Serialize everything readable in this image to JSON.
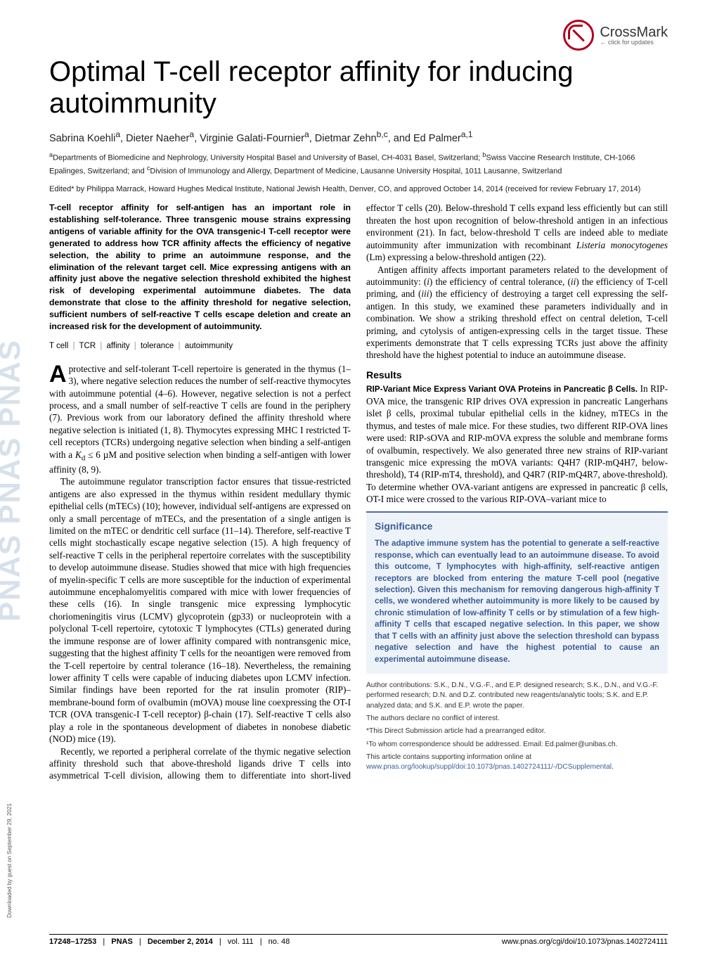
{
  "journal_logo_watermark": "PNAS   PNAS   PNAS",
  "crossmark": {
    "label": "CrossMark",
    "sub": "click for updates"
  },
  "title": "Optimal T-cell receptor affinity for inducing autoimmunity",
  "authors_html": "Sabrina Koehli<sup>a</sup>, Dieter Naeher<sup>a</sup>, Virginie Galati-Fournier<sup>a</sup>, Dietmar Zehn<sup>b,c</sup>, and Ed Palmer<sup>a,1</sup>",
  "affiliations_html": "<sup>a</sup>Departments of Biomedicine and Nephrology, University Hospital Basel and University of Basel, CH-4031 Basel, Switzerland; <sup>b</sup>Swiss Vaccine Research Institute, CH-1066 Epalinges, Switzerland; and <sup>c</sup>Division of Immunology and Allergy, Department of Medicine, Lausanne University Hospital, 1011 Lausanne, Switzerland",
  "edited_by": "Edited* by Philippa Marrack, Howard Hughes Medical Institute, National Jewish Health, Denver, CO, and approved October 14, 2014 (received for review February 17, 2014)",
  "abstract": "T-cell receptor affinity for self-antigen has an important role in establishing self-tolerance. Three transgenic mouse strains expressing antigens of variable affinity for the OVA transgenic-I T-cell receptor were generated to address how TCR affinity affects the efficiency of negative selection, the ability to prime an autoimmune response, and the elimination of the relevant target cell. Mice expressing antigens with an affinity just above the negative selection threshold exhibited the highest risk of developing experimental autoimmune diabetes. The data demonstrate that close to the affinity threshold for negative selection, sufficient numbers of self-reactive T cells escape deletion and create an increased risk for the development of autoimmunity.",
  "keywords": [
    "T cell",
    "TCR",
    "affinity",
    "tolerance",
    "autoimmunity"
  ],
  "body": {
    "p1_first_letter": "A",
    "p1_rest": " protective and self-tolerant T-cell repertoire is generated in the thymus (1–3), where negative selection reduces the number of self-reactive thymocytes with autoimmune potential (4–6). However, negative selection is not a perfect process, and a small number of self-reactive T cells are found in the periphery (7). Previous work from our laboratory defined the affinity threshold where negative selection is initiated (1, 8). Thymocytes expressing MHC I restricted T-cell receptors (TCRs) undergoing negative selection when binding a self-antigen with a <span class=\"ital\">K</span><sub>d</sub> ≤ 6 µM and positive selection when binding a self-antigen with lower affinity (8, 9).",
    "p2": "The autoimmune regulator transcription factor ensures that tissue-restricted antigens are also expressed in the thymus within resident medullary thymic epithelial cells (mTECs) (10); however, individual self-antigens are expressed on only a small percentage of mTECs, and the presentation of a single antigen is limited on the mTEC or dendritic cell surface (11–14). Therefore, self-reactive T cells might stochastically escape negative selection (15). A high frequency of self-reactive T cells in the peripheral repertoire correlates with the susceptibility to develop autoimmune disease. Studies showed that mice with high frequencies of myelin-specific T cells are more susceptible for the induction of experimental autoimmune encephalomyelitis compared with mice with lower frequencies of these cells (16). In single transgenic mice expressing lymphocytic choriomeningitis virus (LCMV) glycoprotein (gp33) or nucleoprotein with a polyclonal T-cell repertoire, cytotoxic T lymphocytes (CTLs) generated during the immune response are of lower affinity compared with nontransgenic mice, suggesting that the highest affinity T cells for the neoantigen were removed from the T-cell repertoire by central tolerance (16–18). Nevertheless, the remaining lower affinity T cells were capable of inducing diabetes upon LCMV infection. Similar findings have been reported for the rat insulin promoter (RIP)–membrane-bound form of ovalbumin (mOVA) mouse line coexpressing the OT-I TCR (OVA transgenic-I T-cell receptor) β-chain (17). Self-reactive T cells also play a role in the spontaneous development of diabetes in nonobese diabetic (NOD) mice (19).",
    "p3": "Recently, we reported a peripheral correlate of the thymic negative selection affinity threshold such that above-threshold ligands drive T cells into asymmetrical T-cell division, allowing them to differentiate into short-lived effector T cells (20). Below-threshold T cells expand less efficiently but can still threaten the host upon recognition of below-threshold antigen in an infectious environment (21). In fact, below-threshold T cells are indeed able to mediate autoimmunity after immunization with recombinant <span class=\"ital\">Listeria monocytogenes</span> (Lm) expressing a below-threshold antigen (22).",
    "p4": "Antigen affinity affects important parameters related to the development of autoimmunity: (<span class=\"ital\">i</span>) the efficiency of central tolerance, (<span class=\"ital\">ii</span>) the efficiency of T-cell priming, and (<span class=\"ital\">iii</span>) the efficiency of destroying a target cell expressing the self-antigen. In this study, we examined these parameters individually and in combination. We show a striking threshold effect on central deletion, T-cell priming, and cytolysis of antigen-expressing cells in the target tissue. These experiments demonstrate that T cells expressing TCRs just above the affinity threshold have the highest potential to induce an autoimmune disease."
  },
  "results": {
    "heading": "Results",
    "subhead": "RIP-Variant Mice Express Variant OVA Proteins in Pancreatic β Cells.",
    "text": " In RIP-OVA mice, the transgenic RIP drives OVA expression in pancreatic Langerhans islet β cells, proximal tubular epithelial cells in the kidney, mTECs in the thymus, and testes of male mice. For these studies, two different RIP-OVA lines were used: RIP-sOVA and RIP-mOVA express the soluble and membrane forms of ovalbumin, respectively. We also generated three new strains of RIP-variant transgenic mice expressing the mOVA variants: Q4H7 (RIP-mQ4H7, below-threshold), T4 (RIP-mT4, threshold), and Q4R7 (RIP-mQ4R7, above-threshold). To determine whether OVA-variant antigens are expressed in pancreatic β cells, OT-I mice were crossed to the various RIP-OVA–variant mice to"
  },
  "significance": {
    "heading": "Significance",
    "text": "The adaptive immune system has the potential to generate a self-reactive response, which can eventually lead to an autoimmune disease. To avoid this outcome, T lymphocytes with high-affinity, self-reactive antigen receptors are blocked from entering the mature T-cell pool (negative selection). Given this mechanism for removing dangerous high-affinity T cells, we wondered whether autoimmunity is more likely to be caused by chronic stimulation of low-affinity T cells or by stimulation of a few high-affinity T cells that escaped negative selection. In this paper, we show that T cells with an affinity just above the selection threshold can bypass negative selection and have the highest potential to cause an experimental autoimmune disease."
  },
  "footnotes": {
    "contrib": "Author contributions: S.K., D.N., V.G.-F., and E.P. designed research; S.K., D.N., and V.G.-F. performed research; D.N. and D.Z. contributed new reagents/analytic tools; S.K. and E.P. analyzed data; and S.K. and E.P. wrote the paper.",
    "coi": "The authors declare no conflict of interest.",
    "editor": "*This Direct Submission article had a prearranged editor.",
    "corr": "¹To whom correspondence should be addressed. Email: Ed.palmer@unibas.ch.",
    "si_pre": "This article contains supporting information online at ",
    "si_link": "www.pnas.org/lookup/suppl/doi:10.1073/pnas.1402724111/-/DCSupplemental",
    "si_post": "."
  },
  "bottombar": {
    "left_pages": "17248–17253",
    "left_journal": "PNAS",
    "left_date": "December 2, 2014",
    "left_vol": "vol. 111",
    "left_no": "no. 48",
    "right": "www.pnas.org/cgi/doi/10.1073/pnas.1402724111"
  },
  "download_note": "Downloaded by guest on September 29, 2021",
  "colors": {
    "accent_blue": "#3b5e93",
    "sigbox_bg": "#eef3fa",
    "crossmark_red": "#b00020",
    "watermark": "#b8c9dc"
  }
}
